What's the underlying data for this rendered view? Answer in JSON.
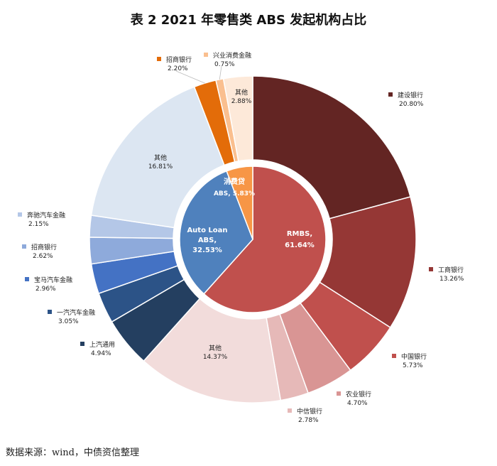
{
  "title": "表 2 2021 年零售类 ABS 发起机构占比",
  "source": "数据来源：wind，中债资信整理",
  "chart_data": {
    "type": "pie",
    "subtype": "sunburst",
    "grid": false,
    "legend": "none",
    "inner": [
      {
        "name": "RMBS,",
        "value_label": "61.64%",
        "value": 61.64,
        "color": "#c0504d"
      },
      {
        "name": "Auto Loan ABS,",
        "value_label": "32.53%",
        "value": 32.53,
        "color": "#4f81bd"
      },
      {
        "name": "消费贷 ABS,",
        "value_label": "5.83%",
        "value": 5.83,
        "color": "#f79646"
      }
    ],
    "outer": [
      {
        "name": "建设银行",
        "value_label": "20.80%",
        "value": 20.8,
        "color": "#632523"
      },
      {
        "name": "工商银行",
        "value_label": "13.26%",
        "value": 13.26,
        "color": "#953735"
      },
      {
        "name": "中国银行",
        "value_label": "5.73%",
        "value": 5.73,
        "color": "#c0504d"
      },
      {
        "name": "农业银行",
        "value_label": "4.70%",
        "value": 4.7,
        "color": "#d99594"
      },
      {
        "name": "中信银行",
        "value_label": "2.78%",
        "value": 2.78,
        "color": "#e6b9b8"
      },
      {
        "name": "其他",
        "value_label": "14.37%",
        "value": 14.37,
        "color": "#f2dcdb"
      },
      {
        "name": "上汽通用",
        "value_label": "4.94%",
        "value": 4.94,
        "color": "#243f60"
      },
      {
        "name": "一汽汽车金融",
        "value_label": "3.05%",
        "value": 3.05,
        "color": "#2c5387"
      },
      {
        "name": "宝马汽车金融",
        "value_label": "2.96%",
        "value": 2.96,
        "color": "#4472c4"
      },
      {
        "name": "招商银行",
        "value_label": "2.62%",
        "value": 2.62,
        "color": "#8eaadb"
      },
      {
        "name": "奔驰汽车金融",
        "value_label": "2.15%",
        "value": 2.15,
        "color": "#b4c7e7"
      },
      {
        "name": "其他",
        "value_label": "16.81%",
        "value": 16.81,
        "color": "#dce6f2"
      },
      {
        "name": "招商银行",
        "value_label": "2.20%",
        "value": 2.2,
        "color": "#e36c09"
      },
      {
        "name": "兴业消费金融",
        "value_label": "0.75%",
        "value": 0.75,
        "color": "#fabf8f"
      },
      {
        "name": "其他",
        "value_label": "2.88%",
        "value": 2.88,
        "color": "#fde9d9"
      }
    ]
  }
}
